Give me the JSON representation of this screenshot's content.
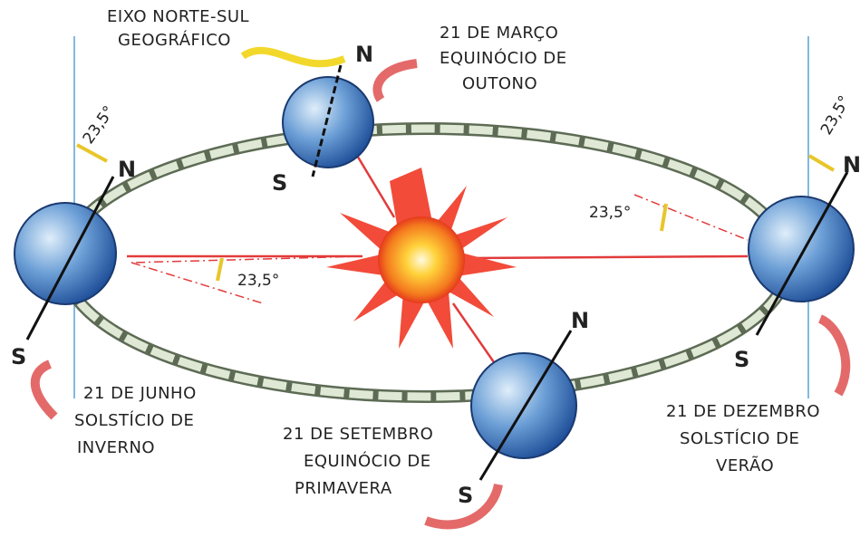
{
  "labels": [
    {
      "lines": [
        "EIXO NORTE-SUL",
        "GEOGRÁFICO"
      ]
    },
    {
      "lines": [
        "21 DE MARÇO",
        "EQUINÓCIO DE",
        "OUTONO"
      ]
    },
    {
      "lines": [
        "21 DE JUNHO",
        "SOLSTÍCIO DE",
        "INVERNO"
      ]
    },
    {
      "lines": [
        "21 DE SETEMBRO",
        "EQUINÓCIO DE",
        "PRIMAVERA"
      ]
    },
    {
      "lines": [
        "21 DE DEZEMBRO",
        "SOLSTÍCIO DE",
        "VERÃO"
      ]
    }
  ],
  "globes": [
    {
      "north": "N",
      "south": "S"
    },
    {
      "north": "N",
      "south": "S"
    },
    {
      "north": "N",
      "south": "S"
    },
    {
      "north": "N",
      "south": "S"
    }
  ],
  "angles": [
    "23,5°",
    "23,5°",
    "23,5°",
    "23,5°"
  ]
}
